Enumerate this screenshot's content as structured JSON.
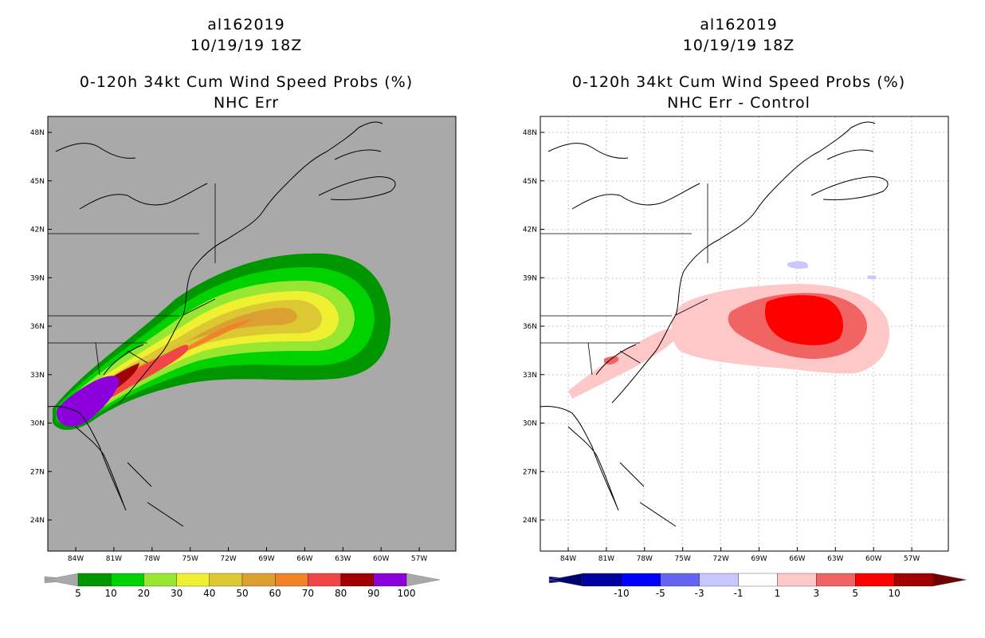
{
  "left_panel": {
    "title_storm": "al162019",
    "title_time": "10/19/19 18Z",
    "title_product": "0-120h 34kt Cum Wind Speed Probs (%)",
    "title_model": "NHC Err",
    "background_color": "#a9a9a9",
    "lat_labels": [
      "48N",
      "45N",
      "42N",
      "39N",
      "36N",
      "33N",
      "30N",
      "27N",
      "24N"
    ],
    "lon_labels": [
      "84W",
      "81W",
      "78W",
      "75W",
      "72W",
      "69W",
      "66W",
      "63W",
      "60W",
      "57W"
    ],
    "colorbar": {
      "colors": [
        "#009600",
        "#00d200",
        "#96e632",
        "#f0f032",
        "#dcc832",
        "#dca032",
        "#f08228",
        "#f04646",
        "#a00000",
        "#8c00dc"
      ],
      "labels": [
        "5",
        "10",
        "20",
        "30",
        "40",
        "50",
        "60",
        "70",
        "80",
        "90",
        "100"
      ]
    }
  },
  "right_panel": {
    "title_storm": "al162019",
    "title_time": "10/19/19 18Z",
    "title_product": "0-120h 34kt Cum Wind Speed Probs (%)",
    "title_model": "NHC Err - Control",
    "background_color": "#ffffff",
    "lat_labels": [
      "48N",
      "45N",
      "42N",
      "39N",
      "36N",
      "33N",
      "30N",
      "27N",
      "24N"
    ],
    "lon_labels": [
      "84W",
      "81W",
      "78W",
      "75W",
      "72W",
      "69W",
      "66W",
      "63W",
      "60W",
      "57W"
    ],
    "colorbar": {
      "colors": [
        "#0000a0",
        "#0000ff",
        "#6464f0",
        "#c8c8ff",
        "#ffffff",
        "#ffc8c8",
        "#f06464",
        "#ff0000",
        "#a00000"
      ],
      "labels": [
        "-10",
        "-5",
        "-3",
        "-1",
        "1",
        "3",
        "5",
        "10"
      ]
    }
  }
}
